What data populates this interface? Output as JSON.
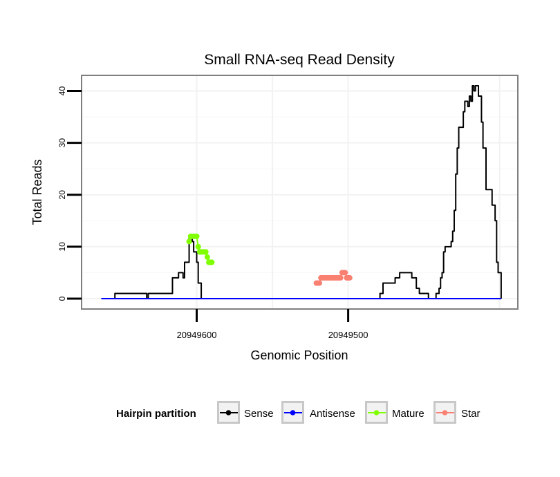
{
  "chart_data": {
    "type": "line",
    "title": "Small RNA-seq Read Density",
    "xlabel": "Genomic Position",
    "ylabel": "Total Reads",
    "x_reversed": true,
    "xlim": [
      20949676,
      20949388
    ],
    "ylim": [
      -2,
      43
    ],
    "x_ticks": [
      20949600,
      20949500
    ],
    "x_tick_labels": [
      "20949600",
      "20949500"
    ],
    "y_ticks": [
      0,
      10,
      20,
      30,
      40
    ],
    "y_tick_labels": [
      "0",
      "10",
      "20",
      "30",
      "40"
    ],
    "grid": true,
    "legend": {
      "title": "Hairpin partition",
      "position": "bottom",
      "entries": [
        {
          "label": "Sense",
          "color": "#000000"
        },
        {
          "label": "Antisense",
          "color": "#0000ff"
        },
        {
          "label": "Mature",
          "color": "#7fff00"
        },
        {
          "label": "Star",
          "color": "#fa8072"
        }
      ]
    },
    "series": [
      {
        "name": "Sense",
        "color": "#000000",
        "x": [
          20949663,
          20949655,
          20949654,
          20949634,
          20949633,
          20949632,
          20949617,
          20949616,
          20949614,
          20949612,
          20949611,
          20949609,
          20949608,
          20949606,
          20949605,
          20949604,
          20949603,
          20949602,
          20949601,
          20949600,
          20949599,
          20949598,
          20949597,
          20949480,
          20949479,
          20949478,
          20949477,
          20949470,
          20949469,
          20949467,
          20949466,
          20949459,
          20949458,
          20949456,
          20949455,
          20949454,
          20949453,
          20949452,
          20949451,
          20949448,
          20949447,
          20949446,
          20949445,
          20949444,
          20949443,
          20949442,
          20949441,
          20949440,
          20949439,
          20949438,
          20949437,
          20949436,
          20949435,
          20949434,
          20949433,
          20949432,
          20949431,
          20949430,
          20949429,
          20949428,
          20949427,
          20949425,
          20949424,
          20949423,
          20949421,
          20949420,
          20949419,
          20949418,
          20949417,
          20949416,
          20949415,
          20949414,
          20949413,
          20949412,
          20949411,
          20949410,
          20949409
        ],
        "y": [
          0,
          0,
          1,
          1,
          0,
          1,
          1,
          4,
          4,
          5,
          5,
          4,
          7,
          7,
          12,
          12,
          11,
          9,
          9,
          7,
          3,
          3,
          0,
          0,
          1,
          1,
          3,
          3,
          4,
          4,
          5,
          5,
          4,
          4,
          2,
          2,
          1,
          1,
          1,
          1,
          0,
          0,
          0,
          0,
          0,
          1,
          1,
          2,
          4,
          5,
          9,
          10,
          10,
          10,
          10,
          11,
          13,
          17,
          24,
          29,
          33,
          33,
          36,
          38,
          37,
          39,
          38,
          41,
          40,
          41,
          41,
          39,
          39,
          34,
          29,
          29,
          21
        ],
        "x_tail": [
          20949406,
          20949405,
          20949404,
          20949403,
          20949402,
          20949401,
          20949400,
          20949399
        ],
        "y_tail": [
          21,
          18,
          18,
          15,
          7,
          5,
          5,
          0
        ]
      },
      {
        "name": "Antisense",
        "color": "#0000ff",
        "x": [
          20949663,
          20949399
        ],
        "y": [
          0,
          0
        ]
      },
      {
        "name": "Mature",
        "color": "#7fff00",
        "x": [
          20949605,
          20949604,
          20949603,
          20949602,
          20949601,
          20949600,
          20949599,
          20949598,
          20949597,
          20949596,
          20949595,
          20949594,
          20949593,
          20949592,
          20949591,
          20949590
        ],
        "y": [
          11,
          12,
          12,
          12,
          12,
          12,
          10,
          9,
          9,
          9,
          9,
          9,
          8,
          7,
          7,
          7
        ]
      },
      {
        "name": "Star",
        "color": "#fa8072",
        "x": [
          20949521,
          20949520,
          20949519,
          20949518,
          20949517,
          20949516,
          20949515,
          20949514,
          20949513,
          20949512,
          20949511,
          20949510,
          20949509,
          20949508,
          20949507,
          20949506,
          20949505,
          20949504,
          20949503,
          20949502,
          20949501,
          20949500,
          20949499
        ],
        "y": [
          3,
          3,
          3,
          4,
          4,
          4,
          4,
          4,
          4,
          4,
          4,
          4,
          4,
          4,
          4,
          4,
          4,
          5,
          5,
          5,
          4,
          4,
          4
        ]
      }
    ]
  }
}
